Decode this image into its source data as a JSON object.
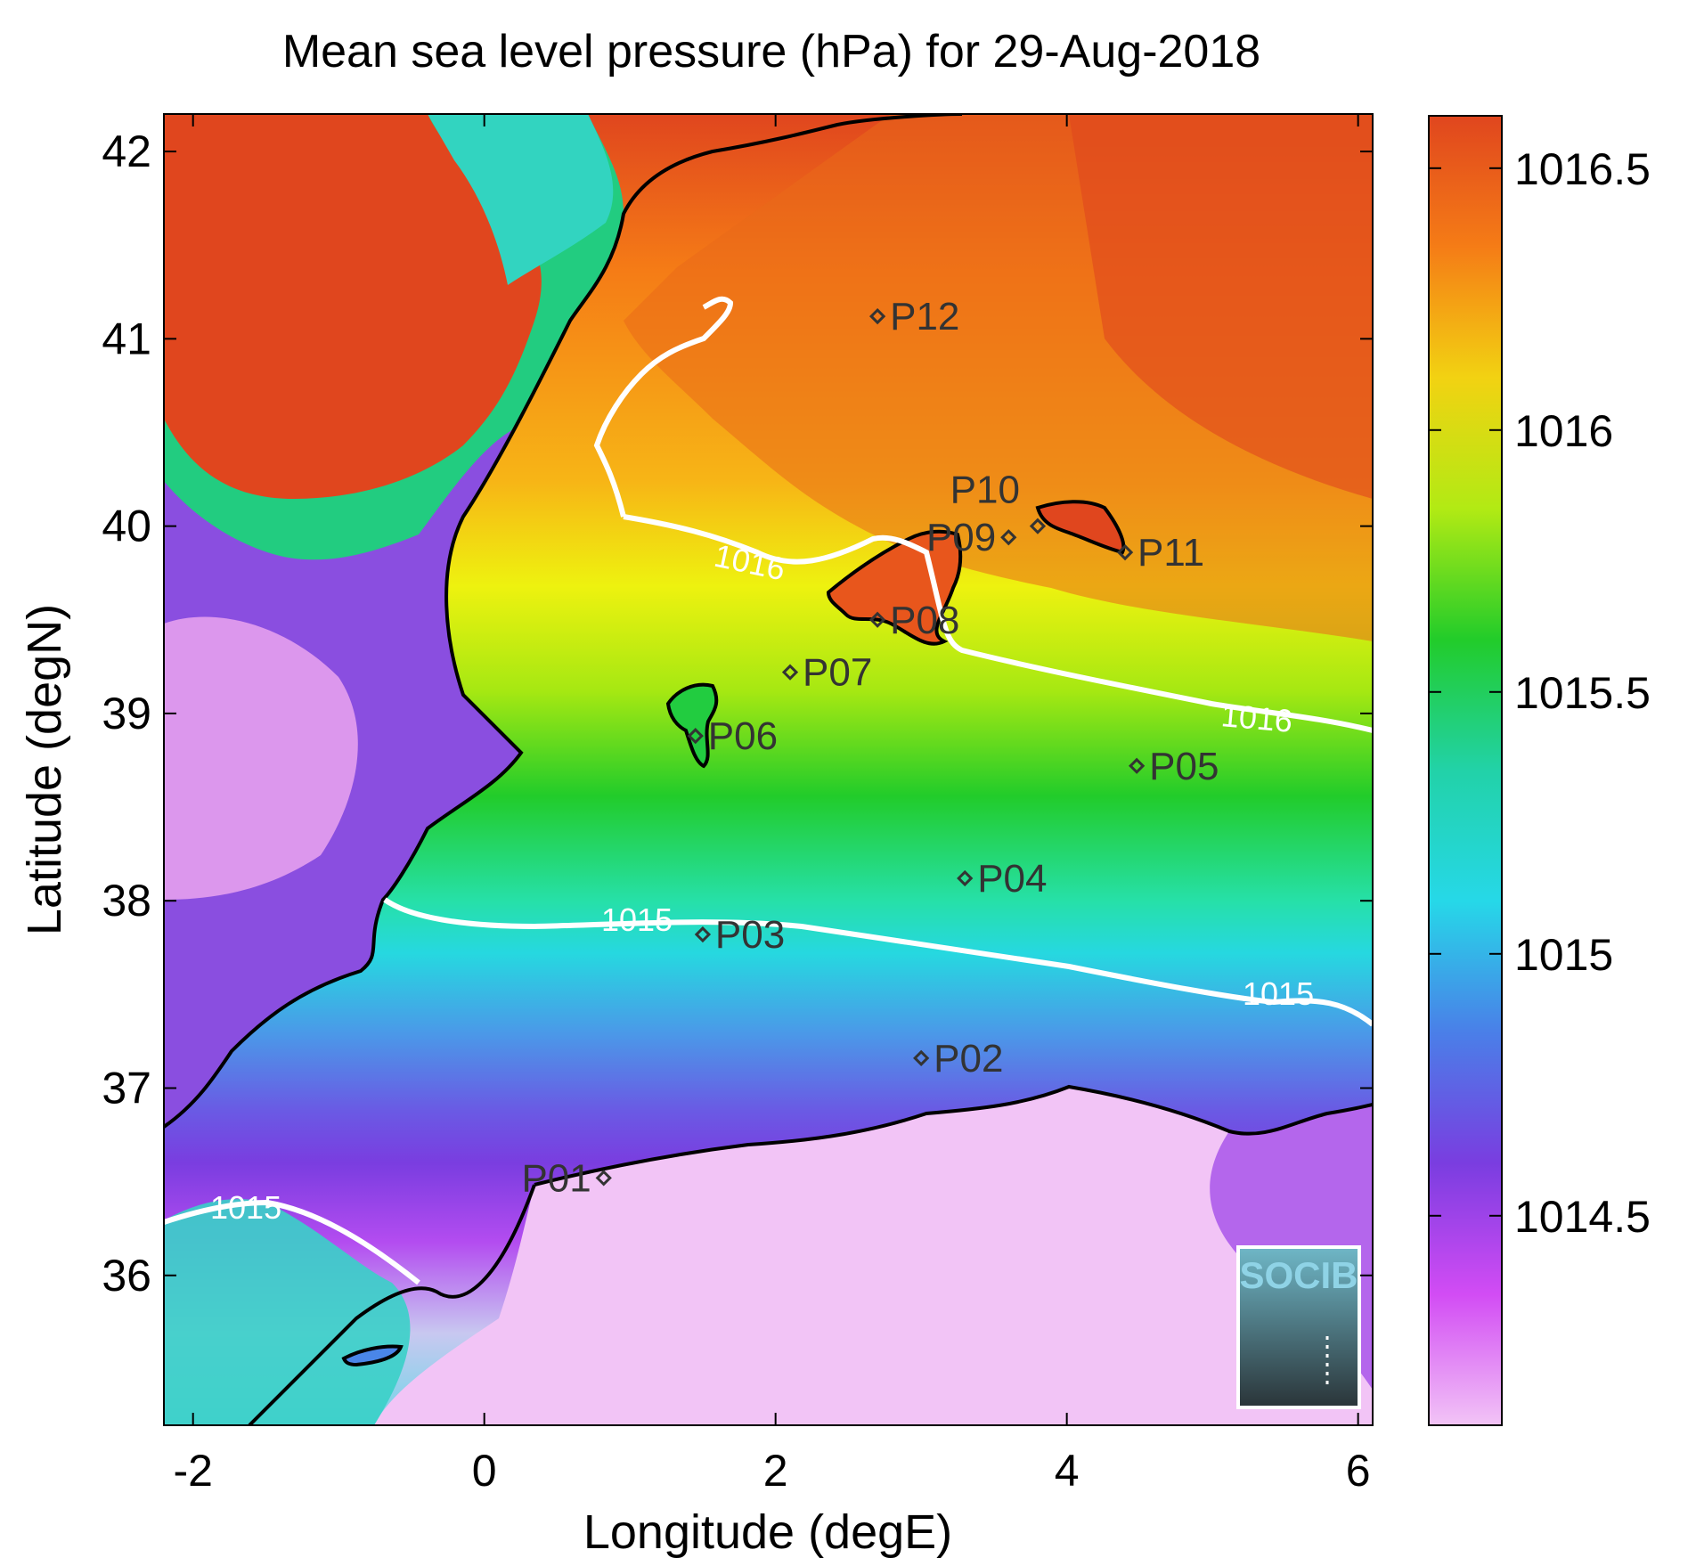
{
  "title": "Mean sea level pressure (hPa) for 29-Aug-2018",
  "xlabel": "Longitude (degE)",
  "ylabel": "Latitude (degN)",
  "x_ticks": [
    "-2",
    "0",
    "2",
    "4",
    "6"
  ],
  "y_ticks": [
    "36",
    "37",
    "38",
    "39",
    "40",
    "41",
    "42"
  ],
  "colorbar_ticks": [
    "1014.5",
    "1015",
    "1015.5",
    "1016",
    "1016.5"
  ],
  "logo_text": "SOCIB",
  "colors": {
    "high": "#e0461e",
    "orange": "#f7a01a",
    "yellow": "#eef20f",
    "green": "#22cc2a",
    "cyan": "#26e0d8",
    "blue": "#4a86e8",
    "purple": "#7a3de0",
    "magenta": "#c43ef2",
    "pink": "#f0c0f4",
    "contour": "#ffffff",
    "coast": "#000000"
  },
  "chart_data": {
    "type": "heatmap",
    "variable": "Mean sea level pressure",
    "units": "hPa",
    "date": "29-Aug-2018",
    "xlim": [
      -2.2,
      6.1
    ],
    "ylim": [
      35.2,
      42.2
    ],
    "colorbar_range": [
      1014.1,
      1016.6
    ],
    "contour_levels": [
      {
        "level": 1015,
        "labels": [
          "1015",
          "1015",
          "1015"
        ]
      },
      {
        "level": 1016,
        "labels": [
          "1016",
          "1016"
        ]
      }
    ],
    "stations": [
      {
        "name": "P01",
        "lon": 0.82,
        "lat": 36.52
      },
      {
        "name": "P02",
        "lon": 3.0,
        "lat": 37.16
      },
      {
        "name": "P03",
        "lon": 1.5,
        "lat": 37.82
      },
      {
        "name": "P04",
        "lon": 3.3,
        "lat": 38.12
      },
      {
        "name": "P05",
        "lon": 4.48,
        "lat": 38.72
      },
      {
        "name": "P06",
        "lon": 1.45,
        "lat": 38.88
      },
      {
        "name": "P07",
        "lon": 2.1,
        "lat": 39.22
      },
      {
        "name": "P08",
        "lon": 2.7,
        "lat": 39.5
      },
      {
        "name": "P09",
        "lon": 3.6,
        "lat": 39.94
      },
      {
        "name": "P10",
        "lon": 3.8,
        "lat": 40.0
      },
      {
        "name": "P11",
        "lon": 4.4,
        "lat": 39.86
      },
      {
        "name": "P12",
        "lon": 2.7,
        "lat": 41.12
      }
    ]
  }
}
